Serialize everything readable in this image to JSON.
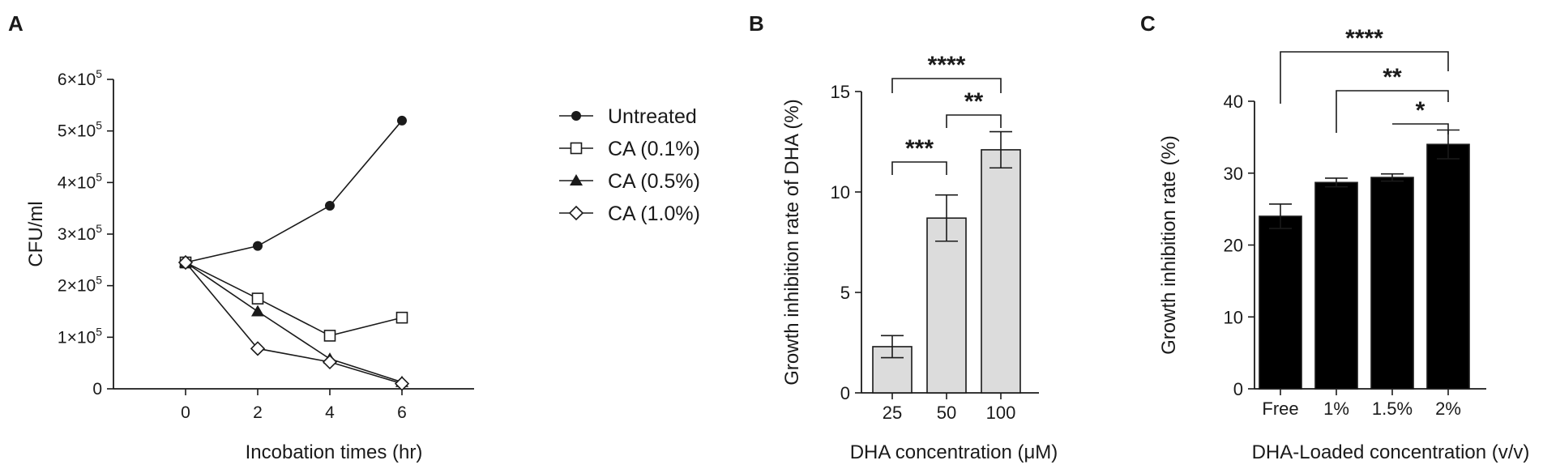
{
  "chart_data": [
    {
      "panel_label": "A",
      "type": "line",
      "xlabel": "Incobation times (hr)",
      "ylabel": "CFU/ml",
      "xlim": [
        -2,
        8
      ],
      "ylim": [
        0,
        600000
      ],
      "x_ticks": [
        0,
        2,
        4,
        6
      ],
      "x_tick_labels": [
        "0",
        "2",
        "4",
        "6"
      ],
      "y_ticks": [
        0,
        100000,
        200000,
        300000,
        400000,
        500000,
        600000
      ],
      "y_tick_labels": [
        {
          "mant": "0",
          "exp": ""
        },
        {
          "mant": "1×10",
          "exp": "5"
        },
        {
          "mant": "2×10",
          "exp": "5"
        },
        {
          "mant": "3×10",
          "exp": "5"
        },
        {
          "mant": "4×10",
          "exp": "5"
        },
        {
          "mant": "5×10",
          "exp": "5"
        },
        {
          "mant": "6×10",
          "exp": "5"
        }
      ],
      "x": [
        0,
        2,
        4,
        6
      ],
      "series": [
        {
          "name": "Untreated",
          "marker": "circle-filled",
          "values": [
            245000,
            277000,
            355000,
            520000
          ]
        },
        {
          "name": "CA (0.1%)",
          "marker": "square-open",
          "values": [
            245000,
            175000,
            103000,
            138000
          ]
        },
        {
          "name": "CA (0.5%)",
          "marker": "triangle-filled",
          "values": [
            245000,
            150000,
            58000,
            13000
          ]
        },
        {
          "name": "CA (1.0%)",
          "marker": "diamond-open",
          "values": [
            245000,
            78000,
            52000,
            10000
          ]
        }
      ],
      "legend": "right"
    },
    {
      "panel_label": "B",
      "type": "bar",
      "xlabel": "DHA concentration (μM)",
      "ylabel": "Growth inhibition rate of DHA (%)",
      "ylim": [
        0,
        15
      ],
      "y_ticks": [
        0,
        5,
        10,
        15
      ],
      "categories": [
        "25",
        "50",
        "100"
      ],
      "values": [
        2.3,
        8.7,
        12.1
      ],
      "errors": [
        0.55,
        1.15,
        0.9
      ],
      "bar_color": "#dcdcdc",
      "significance": [
        {
          "from": 0,
          "to": 1,
          "label": "***"
        },
        {
          "from": 1,
          "to": 2,
          "label": "**"
        },
        {
          "from": 0,
          "to": 2,
          "label": "****"
        }
      ]
    },
    {
      "panel_label": "C",
      "type": "bar",
      "xlabel": "DHA-Loaded concentration (v/v)",
      "ylabel": "Growth inhibition rate (%)",
      "ylim": [
        0,
        40
      ],
      "y_ticks": [
        0,
        10,
        20,
        30,
        40
      ],
      "categories": [
        "Free",
        "1%",
        "1.5%",
        "2%"
      ],
      "values": [
        24.0,
        28.7,
        29.4,
        34.0
      ],
      "errors": [
        1.7,
        0.6,
        0.5,
        2.0
      ],
      "bar_color": "#000000",
      "significance": [
        {
          "from": 2,
          "to": 3,
          "label": "*"
        },
        {
          "from": 1,
          "to": 3,
          "label": "**"
        },
        {
          "from": 0,
          "to": 3,
          "label": "****"
        }
      ]
    }
  ]
}
